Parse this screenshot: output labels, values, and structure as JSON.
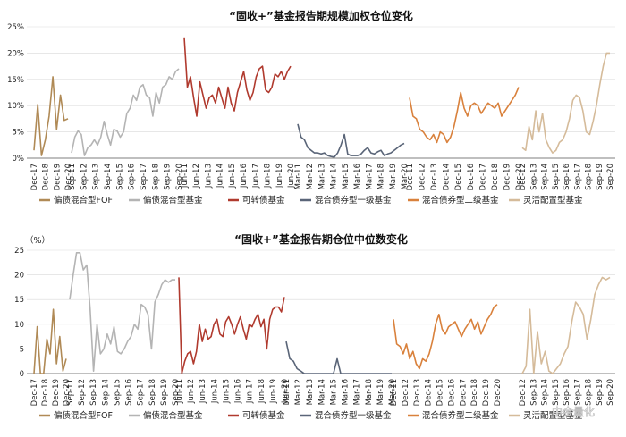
{
  "watermark": "中金量化",
  "colors": {
    "fof": "#b08a56",
    "pian_zhai": "#b4b4b4",
    "kezhuan": "#b03a2e",
    "yiji": "#5a6578",
    "erji": "#d9813c",
    "linghuo": "#d5bb9a",
    "grid": "#d9d9d9",
    "axis": "#555555"
  },
  "chart_data": [
    {
      "type": "line",
      "title": "“固收+”基金报告期规模加权仓位变化",
      "unit_label": "",
      "ylim": [
        0,
        25
      ],
      "yticks": [
        "0%",
        "5%",
        "10%",
        "15%",
        "20%",
        "25%"
      ],
      "grid": true,
      "legend_position": "bottom",
      "legend": [
        "偏债混合型FOF",
        "偏债混合型基金",
        "可转债基金",
        "混合债券型一级基金",
        "混合债券型二级基金",
        "灵活配置型基金"
      ],
      "series": [
        {
          "name": "偏债混合型FOF",
          "color_key": "fof",
          "x_labels": [
            "Dec-17",
            "Dec-18",
            "Dec-19",
            "Dec-20"
          ],
          "values": [
            1.5,
            10.2,
            0.5,
            3.5,
            8.0,
            15.5,
            5.5,
            12.0,
            7.2,
            7.5
          ]
        },
        {
          "name": "偏债混合型基金",
          "color_key": "pian_zhai",
          "x_labels": [
            "Sep-11",
            "Sep-12",
            "Sep-13",
            "Sep-14",
            "Sep-15",
            "Sep-16",
            "Sep-17",
            "Sep-18",
            "Sep-19",
            "Sep-20"
          ],
          "values": [
            1.0,
            4.0,
            5.2,
            4.5,
            0.5,
            2.0,
            2.5,
            3.5,
            2.5,
            4.0,
            7.0,
            4.5,
            2.5,
            5.5,
            5.2,
            4.0,
            5.0,
            8.5,
            9.5,
            12.0,
            11.0,
            13.5,
            14.0,
            12.0,
            11.5,
            8.0,
            12.5,
            10.5,
            13.5,
            14.0,
            15.5,
            15.0,
            16.5,
            17.0
          ]
        },
        {
          "name": "可转债基金",
          "color_key": "kezhuan",
          "x_labels": [
            "Jun-11",
            "Jun-12",
            "Jun-13",
            "Jun-14",
            "Jun-15",
            "Jun-16",
            "Jun-17",
            "Jun-18",
            "Jun-19",
            "Jun-20"
          ],
          "values": [
            23.0,
            13.5,
            15.5,
            11.5,
            8.0,
            14.5,
            12.0,
            9.5,
            11.5,
            12.0,
            10.5,
            13.5,
            11.5,
            9.5,
            13.5,
            10.5,
            9.0,
            12.5,
            14.5,
            16.5,
            13.0,
            11.0,
            12.5,
            15.5,
            17.0,
            17.5,
            13.0,
            12.5,
            13.5,
            16.0,
            15.5,
            16.5,
            15.0,
            16.5,
            17.5
          ]
        },
        {
          "name": "混合债券型一级基金",
          "color_key": "yiji",
          "x_labels": [
            "Mar-11",
            "Mar-12",
            "Mar-13",
            "Mar-14",
            "Mar-15",
            "Mar-16",
            "Mar-17",
            "Mar-18",
            "Mar-19",
            "Mar-20"
          ],
          "values": [
            6.5,
            4.0,
            3.5,
            2.0,
            1.5,
            1.0,
            1.0,
            0.8,
            1.0,
            0.5,
            0.3,
            0.2,
            1.0,
            2.5,
            4.5,
            0.8,
            0.5,
            0.5,
            0.5,
            0.8,
            1.5,
            2.0,
            1.0,
            0.8,
            1.2,
            1.5,
            0.5,
            0.8,
            1.0,
            1.5,
            2.0,
            2.5,
            2.8
          ]
        },
        {
          "name": "混合债券型二级基金",
          "color_key": "erji",
          "x_labels": [
            "Dec-11",
            "Dec-12",
            "Dec-13",
            "Dec-14",
            "Dec-15",
            "Dec-16",
            "Dec-17",
            "Dec-18",
            "Dec-19",
            "Dec-20"
          ],
          "values": [
            11.5,
            8.0,
            7.5,
            5.5,
            5.0,
            4.0,
            3.5,
            4.5,
            3.0,
            5.0,
            4.5,
            3.0,
            4.0,
            6.0,
            9.0,
            12.5,
            9.5,
            8.0,
            10.0,
            10.5,
            10.0,
            8.5,
            9.5,
            10.5,
            10.0,
            9.5,
            10.5,
            8.0,
            9.0,
            10.0,
            11.0,
            12.0,
            13.5
          ]
        },
        {
          "name": "灵活配置型基金",
          "color_key": "linghuo",
          "x_labels": [
            "Dec-12",
            "Sep-13",
            "Sep-14",
            "Sep-15",
            "Sep-16",
            "Sep-17",
            "Sep-18",
            "Sep-19",
            "Sep-20"
          ],
          "values": [
            2.0,
            1.5,
            6.0,
            3.5,
            9.0,
            5.0,
            8.5,
            3.5,
            2.0,
            1.0,
            1.5,
            3.0,
            3.5,
            5.0,
            7.5,
            11.0,
            12.0,
            11.5,
            9.0,
            5.0,
            4.5,
            7.0,
            10.0,
            14.0,
            17.5,
            20.0,
            20.0
          ]
        }
      ]
    },
    {
      "type": "line",
      "title": "“固收+”基金报告期仓位中位数变化",
      "unit_label": "（%）",
      "ylim": [
        0,
        25
      ],
      "yticks": [
        "0",
        "5",
        "10",
        "15",
        "20",
        "25"
      ],
      "grid": true,
      "legend_position": "bottom",
      "legend": [
        "偏债混合型FOF",
        "偏债混合型基金",
        "可转债基金",
        "混合债券型一级基金",
        "混合债券型二级基金",
        "灵活配置型基金"
      ],
      "series": [
        {
          "name": "偏债混合型FOF",
          "color_key": "fof",
          "x_labels": [
            "Dec-17",
            "Dec-18",
            "Dec-19",
            "Dec-20"
          ],
          "values": [
            0.0,
            9.5,
            0.0,
            0.0,
            7.0,
            4.0,
            13.0,
            2.0,
            7.5,
            0.5,
            3.0
          ]
        },
        {
          "name": "偏债混合型基金",
          "color_key": "pian_zhai",
          "x_labels": [
            "Sep-11",
            "Sep-12",
            "Sep-13",
            "Sep-14",
            "Sep-15",
            "Sep-16",
            "Sep-17",
            "Sep-18",
            "Sep-19",
            "Sep-20"
          ],
          "values": [
            15.0,
            20.0,
            24.5,
            24.5,
            21.0,
            22.0,
            13.0,
            0.5,
            10.0,
            4.0,
            5.0,
            8.0,
            6.0,
            9.5,
            4.5,
            4.0,
            5.0,
            6.5,
            7.5,
            10.0,
            9.0,
            14.0,
            13.5,
            12.0,
            5.0,
            14.5,
            16.0,
            18.0,
            19.0,
            18.5,
            19.0,
            19.0
          ]
        },
        {
          "name": "可转债基金",
          "color_key": "kezhuan",
          "x_labels": [
            "Jun-11",
            "Jun-12",
            "Jun-13",
            "Jun-14",
            "Jun-15",
            "Jun-16",
            "Jun-17",
            "Jun-18",
            "Jun-19",
            "Jun-20"
          ],
          "values": [
            19.5,
            0.0,
            2.5,
            4.0,
            4.5,
            2.0,
            4.5,
            10.0,
            6.5,
            9.0,
            7.0,
            7.5,
            10.0,
            11.0,
            8.0,
            7.5,
            10.5,
            11.5,
            10.0,
            8.0,
            10.0,
            11.5,
            9.0,
            7.0,
            10.0,
            9.5,
            11.0,
            12.0,
            9.5,
            11.0,
            5.0,
            11.0,
            13.0,
            13.5,
            13.5,
            12.5,
            15.5
          ]
        },
        {
          "name": "混合债券型一级基金",
          "color_key": "yiji",
          "x_labels": [
            "Mar-11",
            "Mar-12",
            "Mar-13",
            "Mar-14",
            "Mar-15",
            "Mar-16",
            "Mar-17",
            "Mar-18",
            "Mar-19",
            "Mar-20"
          ],
          "values": [
            6.5,
            3.0,
            2.5,
            1.0,
            0.5,
            0.0,
            0.0,
            0.0,
            0.0,
            0.0,
            0.0,
            0.0,
            0.0,
            0.0,
            3.0,
            0.0,
            0.0,
            0.0,
            0.0,
            0.0,
            0.0,
            0.0,
            0.0,
            0.0,
            0.0,
            0.0,
            0.0,
            0.0,
            0.0,
            0.0
          ]
        },
        {
          "name": "混合债券型二级基金",
          "color_key": "erji",
          "x_labels": [
            "Dec-11",
            "Dec-12",
            "Dec-13",
            "Dec-14",
            "Dec-15",
            "Dec-16",
            "Dec-17",
            "Dec-18",
            "Dec-19",
            "Dec-20"
          ],
          "values": [
            11.0,
            6.0,
            5.5,
            4.0,
            6.0,
            3.0,
            4.5,
            2.0,
            1.0,
            3.0,
            2.5,
            4.0,
            6.5,
            10.0,
            12.0,
            9.0,
            8.0,
            9.5,
            10.0,
            10.5,
            9.0,
            7.5,
            9.0,
            10.0,
            11.0,
            9.0,
            10.5,
            8.0,
            9.5,
            11.0,
            12.0,
            13.5,
            14.0
          ]
        },
        {
          "name": "灵活配置型基金",
          "color_key": "linghuo",
          "x_labels": [
            "Dec-12",
            "Sep-13",
            "Sep-14",
            "Sep-15",
            "Sep-16",
            "Sep-17",
            "Sep-18",
            "Sep-19",
            "Sep-20"
          ],
          "values": [
            0.0,
            1.5,
            13.0,
            0.0,
            8.5,
            2.0,
            4.5,
            0.5,
            0.0,
            1.0,
            2.0,
            4.0,
            5.5,
            10.5,
            14.5,
            13.5,
            12.0,
            7.0,
            11.0,
            16.0,
            18.0,
            19.5,
            19.0,
            19.5
          ]
        }
      ]
    }
  ]
}
